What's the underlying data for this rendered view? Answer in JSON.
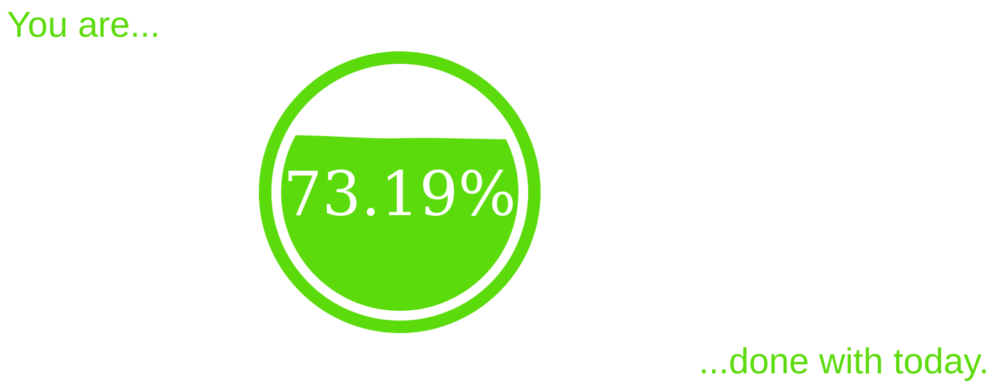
{
  "intro_text": "You are...",
  "outro_text": "...done with today.",
  "progress": {
    "value": 73.19,
    "label": "73.19%"
  },
  "colors": {
    "accent": "#5cdb0c",
    "background": "#ffffff",
    "label_on_fill": "#ffffff"
  }
}
